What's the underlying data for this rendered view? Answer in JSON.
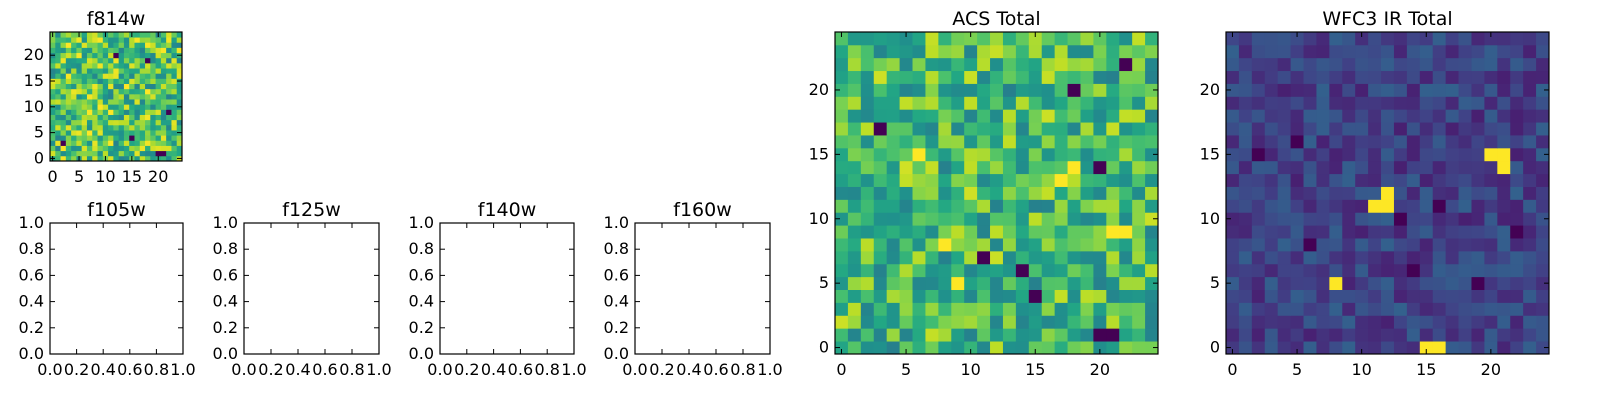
{
  "chart_data": [
    {
      "type": "heatmap",
      "title": "f814w",
      "grid_size": 25,
      "xticks": [
        "0",
        "5",
        "10",
        "15",
        "20"
      ],
      "yticks": [
        "0",
        "5",
        "10",
        "15",
        "20"
      ],
      "xlim": [
        -0.5,
        24.5
      ],
      "ylim": [
        -0.5,
        24.5
      ],
      "colormap": "viridis",
      "values_note": "25x25 pixel cutout; values are random-looking noise dominated by mid-to-high intensities with a few low (dark) pixels",
      "low_pixels": [
        [
          12,
          20
        ],
        [
          20,
          1
        ],
        [
          21,
          1
        ],
        [
          22,
          9
        ],
        [
          2,
          3
        ],
        [
          18,
          19
        ],
        [
          15,
          4
        ]
      ],
      "high_pixels": [
        [
          14,
          14
        ],
        [
          18,
          13
        ],
        [
          7,
          5
        ],
        [
          3,
          22
        ],
        [
          11,
          9
        ]
      ]
    },
    {
      "type": "empty",
      "title": "f105w",
      "xticks": [
        "0.0",
        "0.2",
        "0.4",
        "0.6",
        "0.8",
        "1.0"
      ],
      "yticks": [
        "0.0",
        "0.2",
        "0.4",
        "0.6",
        "0.8",
        "1.0"
      ],
      "xlim": [
        0,
        1
      ],
      "ylim": [
        0,
        1
      ]
    },
    {
      "type": "empty",
      "title": "f125w",
      "xticks": [
        "0.0",
        "0.2",
        "0.4",
        "0.6",
        "0.8",
        "1.0"
      ],
      "yticks": [
        "0.0",
        "0.2",
        "0.4",
        "0.6",
        "0.8",
        "1.0"
      ],
      "xlim": [
        0,
        1
      ],
      "ylim": [
        0,
        1
      ]
    },
    {
      "type": "empty",
      "title": "f140w",
      "xticks": [
        "0.0",
        "0.2",
        "0.4",
        "0.6",
        "0.8",
        "1.0"
      ],
      "yticks": [
        "0.0",
        "0.2",
        "0.4",
        "0.6",
        "0.8",
        "1.0"
      ],
      "xlim": [
        0,
        1
      ],
      "ylim": [
        0,
        1
      ]
    },
    {
      "type": "empty",
      "title": "f160w",
      "xticks": [
        "0.0",
        "0.2",
        "0.4",
        "0.6",
        "0.8",
        "1.0"
      ],
      "yticks": [
        "0.0",
        "0.2",
        "0.4",
        "0.6",
        "0.8",
        "1.0"
      ],
      "xlim": [
        0,
        1
      ],
      "ylim": [
        0,
        1
      ]
    },
    {
      "type": "heatmap",
      "title": "ACS Total",
      "grid_size": 25,
      "xticks": [
        "0",
        "5",
        "10",
        "15",
        "20"
      ],
      "yticks": [
        "0",
        "5",
        "10",
        "15",
        "20"
      ],
      "xlim": [
        -0.5,
        24.5
      ],
      "ylim": [
        -0.5,
        24.5
      ],
      "colormap": "viridis",
      "values_note": "25x25 pixel sum of ACS bands; noise dominated by mid-to-high intensities with a few dark pixels",
      "low_pixels": [
        [
          3,
          17
        ],
        [
          22,
          22
        ],
        [
          20,
          1
        ],
        [
          21,
          1
        ],
        [
          14,
          6
        ],
        [
          15,
          4
        ],
        [
          20,
          14
        ],
        [
          18,
          20
        ],
        [
          11,
          7
        ]
      ],
      "high_pixels": [
        [
          18,
          14
        ],
        [
          17,
          13
        ],
        [
          8,
          8
        ],
        [
          9,
          5
        ],
        [
          21,
          9
        ],
        [
          22,
          9
        ],
        [
          6,
          15
        ]
      ]
    },
    {
      "type": "heatmap",
      "title": "WFC3 IR Total",
      "grid_size": 25,
      "xticks": [
        "0",
        "5",
        "10",
        "15",
        "20"
      ],
      "yticks": [
        "0",
        "5",
        "10",
        "15",
        "20"
      ],
      "xlim": [
        -0.5,
        24.5
      ],
      "ylim": [
        -0.5,
        24.5
      ],
      "colormap": "viridis",
      "values_note": "25x25 pixel sum of WFC3 IR bands; mostly low background with a few bright sources",
      "low_pixels": [
        [
          2,
          15
        ],
        [
          6,
          8
        ],
        [
          13,
          10
        ],
        [
          16,
          11
        ],
        [
          14,
          6
        ],
        [
          22,
          9
        ],
        [
          21,
          14
        ],
        [
          5,
          16
        ],
        [
          19,
          5
        ]
      ],
      "high_pixels": [
        [
          21,
          15
        ],
        [
          21,
          14
        ],
        [
          20,
          15
        ],
        [
          12,
          12
        ],
        [
          12,
          11
        ],
        [
          11,
          11
        ],
        [
          8,
          5
        ],
        [
          15,
          0
        ],
        [
          16,
          0
        ]
      ]
    }
  ]
}
